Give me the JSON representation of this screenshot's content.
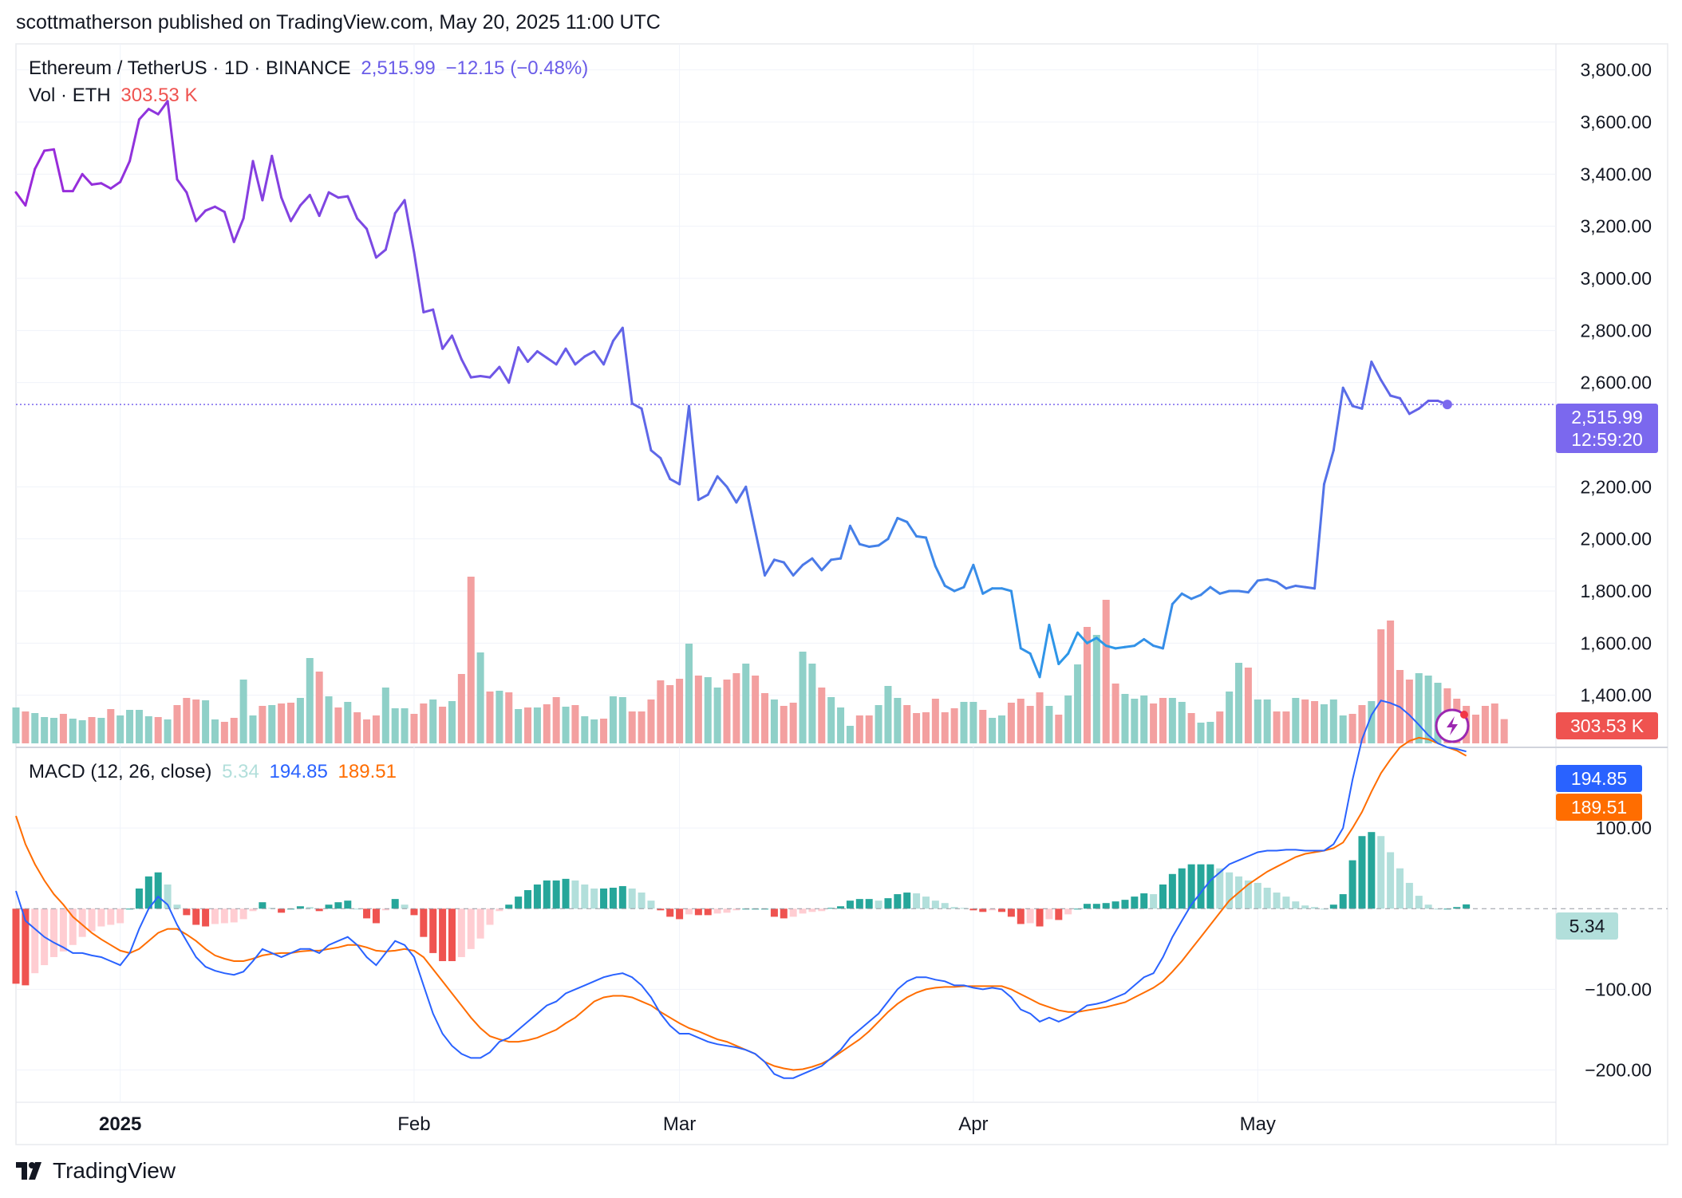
{
  "header": {
    "publisher_line": "scottmatherson published on TradingView.com, May 20, 2025 11:00 UTC"
  },
  "legend": {
    "symbol": "Ethereum / TetherUS · 1D · BINANCE",
    "price": "2,515.99",
    "change": "−12.15 (−0.48%)",
    "vol_label": "Vol · ETH",
    "vol_value": "303.53 K",
    "macd_label": "MACD (12, 26, close)",
    "macd_hist": "5.34",
    "macd_line": "194.85",
    "macd_signal": "189.51"
  },
  "badges": {
    "price": "2,515.99",
    "countdown": "12:59:20",
    "volume": "303.53 K",
    "macd_line": "194.85",
    "macd_signal": "189.51",
    "macd_hist": "5.34"
  },
  "footer": {
    "brand": "TradingView"
  },
  "colors": {
    "price_line_start": "#9c27d9",
    "price_line_mid": "#6a5ce8",
    "price_line_end": "#2a9ae8",
    "vol_up": "#8fd0c8",
    "vol_down": "#f3a0a0",
    "macd_line": "#2962ff",
    "signal_line": "#ff6d00",
    "hist_up_strong": "#26a69a",
    "hist_up_weak": "#b2dfdb",
    "hist_down_strong": "#ef5350",
    "hist_down_weak": "#ffcdd2",
    "price_badge": "#7b68ee",
    "vol_badge": "#ef5350"
  },
  "chart_data": {
    "type": "line",
    "title": "Ethereum / TetherUS · 1D · BINANCE",
    "x_axis": {
      "tick_labels": [
        "2025",
        "Feb",
        "Mar",
        "Apr",
        "May"
      ],
      "tick_dates": [
        "2025-01-01",
        "2025-02-01",
        "2025-03-01",
        "2025-04-01",
        "2025-05-01"
      ],
      "start_date": "2024-12-21",
      "end_date": "2025-05-20"
    },
    "price_axis": {
      "ticks": [
        1400,
        1600,
        1800,
        2000,
        2200,
        2600,
        2800,
        3000,
        3200,
        3400,
        3600,
        3800
      ],
      "tick_labels": [
        "1,400.00",
        "1,600.00",
        "1,800.00",
        "2,000.00",
        "2,200.00",
        "2,600.00",
        "2,800.00",
        "3,000.00",
        "3,200.00",
        "3,400.00",
        "3,600.00",
        "3,800.00"
      ]
    },
    "macd_axis": {
      "ticks": [
        100,
        -100,
        -200
      ],
      "tick_labels": [
        "100.00",
        "−100.00",
        "−200.00"
      ]
    },
    "close": [
      3330,
      3280,
      3420,
      3490,
      3495,
      3335,
      3335,
      3400,
      3360,
      3365,
      3345,
      3370,
      3450,
      3610,
      3650,
      3630,
      3680,
      3380,
      3330,
      3220,
      3260,
      3275,
      3255,
      3140,
      3230,
      3450,
      3300,
      3470,
      3310,
      3220,
      3280,
      3320,
      3240,
      3330,
      3310,
      3315,
      3230,
      3190,
      3080,
      3110,
      3250,
      3300,
      3100,
      2870,
      2880,
      2730,
      2780,
      2690,
      2620,
      2625,
      2620,
      2660,
      2600,
      2735,
      2680,
      2720,
      2695,
      2670,
      2730,
      2670,
      2700,
      2720,
      2670,
      2760,
      2810,
      2520,
      2500,
      2340,
      2310,
      2230,
      2210,
      2510,
      2150,
      2170,
      2240,
      2200,
      2140,
      2200,
      2030,
      1860,
      1920,
      1910,
      1860,
      1900,
      1925,
      1880,
      1920,
      1925,
      2050,
      1980,
      1970,
      1975,
      2000,
      2080,
      2065,
      2010,
      2005,
      1895,
      1820,
      1800,
      1815,
      1900,
      1790,
      1810,
      1810,
      1800,
      1580,
      1560,
      1470,
      1670,
      1520,
      1560,
      1640,
      1600,
      1620,
      1590,
      1580,
      1585,
      1590,
      1615,
      1590,
      1580,
      1750,
      1790,
      1770,
      1785,
      1815,
      1790,
      1800,
      1800,
      1795,
      1840,
      1845,
      1835,
      1810,
      1820,
      1815,
      1810,
      2210,
      2340,
      2580,
      2510,
      2500,
      2680,
      2610,
      2550,
      2540,
      2480,
      2500,
      2530,
      2530,
      2516
    ],
    "volume_k": [
      450,
      400,
      380,
      330,
      320,
      370,
      310,
      290,
      330,
      320,
      430,
      350,
      420,
      420,
      340,
      330,
      300,
      480,
      570,
      550,
      540,
      300,
      270,
      320,
      800,
      350,
      470,
      480,
      500,
      510,
      570,
      1070,
      900,
      590,
      450,
      520,
      390,
      300,
      350,
      700,
      440,
      440,
      370,
      500,
      550,
      460,
      530,
      870,
      2090,
      1140,
      650,
      660,
      640,
      430,
      450,
      450,
      490,
      580,
      460,
      480,
      340,
      300,
      310,
      590,
      580,
      400,
      400,
      550,
      790,
      730,
      810,
      1250,
      850,
      830,
      700,
      800,
      880,
      1000,
      850,
      630,
      550,
      470,
      510,
      1150,
      1000,
      700,
      580,
      450,
      220,
      350,
      350,
      480,
      720,
      570,
      480,
      380,
      390,
      560,
      390,
      440,
      520,
      520,
      420,
      320,
      350,
      510,
      560,
      470,
      640,
      470,
      360,
      600,
      990,
      1460,
      1360,
      1800,
      750,
      620,
      560,
      600,
      500,
      570,
      570,
      520,
      380,
      260,
      270,
      400,
      650,
      1010,
      950,
      550,
      550,
      400,
      400,
      570,
      550,
      530,
      490,
      550,
      350,
      370,
      480,
      530,
      1430,
      1540,
      920,
      800,
      880,
      850,
      760,
      690,
      560,
      470,
      360,
      470,
      500,
      304
    ],
    "macd": [
      22,
      -15,
      -25,
      -35,
      -42,
      -48,
      -55,
      -55,
      -58,
      -60,
      -65,
      -70,
      -55,
      -25,
      0,
      15,
      5,
      -20,
      -40,
      -60,
      -72,
      -77,
      -80,
      -82,
      -78,
      -65,
      -50,
      -55,
      -60,
      -55,
      -50,
      -50,
      -55,
      -45,
      -40,
      -35,
      -45,
      -60,
      -70,
      -55,
      -40,
      -45,
      -60,
      -95,
      -130,
      -155,
      -170,
      -180,
      -185,
      -185,
      -178,
      -165,
      -160,
      -150,
      -140,
      -130,
      -120,
      -115,
      -105,
      -100,
      -95,
      -90,
      -85,
      -82,
      -80,
      -85,
      -95,
      -110,
      -130,
      -145,
      -155,
      -155,
      -160,
      -165,
      -168,
      -170,
      -172,
      -175,
      -180,
      -190,
      -205,
      -210,
      -210,
      -205,
      -200,
      -195,
      -185,
      -175,
      -160,
      -150,
      -140,
      -130,
      -115,
      -100,
      -90,
      -85,
      -85,
      -88,
      -90,
      -95,
      -95,
      -98,
      -100,
      -98,
      -100,
      -110,
      -125,
      -130,
      -140,
      -135,
      -140,
      -135,
      -128,
      -120,
      -118,
      -115,
      -110,
      -105,
      -95,
      -85,
      -80,
      -60,
      -35,
      -15,
      5,
      20,
      35,
      45,
      55,
      60,
      65,
      70,
      72,
      72,
      73,
      73,
      72,
      72,
      72,
      80,
      100,
      160,
      210,
      240,
      258,
      255,
      250,
      240,
      228,
      215,
      205,
      200,
      198,
      194.85
    ],
    "signal": [
      115,
      80,
      55,
      35,
      18,
      5,
      -10,
      -20,
      -30,
      -38,
      -45,
      -52,
      -55,
      -50,
      -40,
      -30,
      -25,
      -25,
      -32,
      -40,
      -50,
      -58,
      -62,
      -65,
      -65,
      -62,
      -58,
      -56,
      -55,
      -55,
      -53,
      -52,
      -52,
      -50,
      -48,
      -45,
      -45,
      -48,
      -52,
      -53,
      -52,
      -50,
      -52,
      -60,
      -75,
      -90,
      -105,
      -120,
      -135,
      -148,
      -158,
      -162,
      -165,
      -165,
      -163,
      -160,
      -155,
      -150,
      -142,
      -135,
      -125,
      -115,
      -110,
      -108,
      -108,
      -110,
      -115,
      -120,
      -128,
      -135,
      -142,
      -148,
      -152,
      -157,
      -162,
      -165,
      -170,
      -175,
      -180,
      -190,
      -195,
      -198,
      -200,
      -199,
      -196,
      -192,
      -186,
      -178,
      -170,
      -162,
      -152,
      -140,
      -128,
      -118,
      -110,
      -104,
      -100,
      -98,
      -97,
      -97,
      -96,
      -96,
      -96,
      -96,
      -96,
      -100,
      -106,
      -112,
      -118,
      -122,
      -126,
      -128,
      -128,
      -126,
      -124,
      -122,
      -119,
      -116,
      -110,
      -104,
      -98,
      -90,
      -78,
      -65,
      -50,
      -35,
      -20,
      -5,
      10,
      20,
      30,
      38,
      46,
      52,
      58,
      64,
      68,
      70,
      72,
      75,
      82,
      100,
      120,
      145,
      168,
      185,
      200,
      208,
      212,
      210,
      205,
      200,
      196,
      189.51
    ],
    "ylim_price": [
      1200,
      3900
    ],
    "ylim_macd": [
      -240,
      200
    ]
  }
}
